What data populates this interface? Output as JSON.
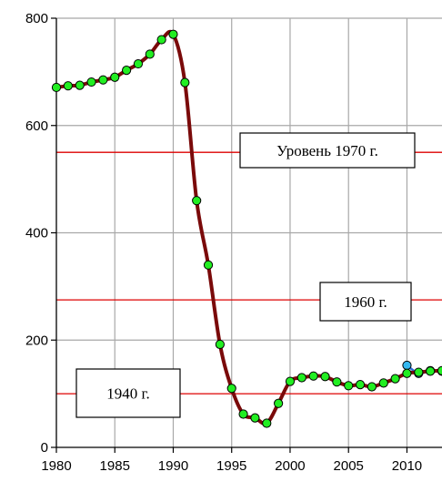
{
  "chart_data": {
    "type": "line",
    "title": "",
    "xlabel": "",
    "ylabel": "",
    "xlim": [
      1980,
      2013
    ],
    "ylim": [
      0,
      800
    ],
    "grid": true,
    "x_ticks": [
      1980,
      1985,
      1990,
      1995,
      2000,
      2005,
      2010
    ],
    "y_ticks": [
      0,
      200,
      400,
      600,
      800
    ],
    "series": [
      {
        "color": "#7a0a0a",
        "marker_color": "#22ee22",
        "x": [
          1980,
          1981,
          1982,
          1983,
          1984,
          1985,
          1986,
          1987,
          1988,
          1989,
          1990,
          1991,
          1992,
          1993,
          1994,
          1995,
          1996,
          1997,
          1998,
          1999,
          2000,
          2001,
          2002,
          2003,
          2004,
          2005,
          2006,
          2007,
          2008,
          2009,
          2010,
          2011,
          2012,
          2013
        ],
        "y": [
          671,
          674,
          675,
          681,
          685,
          690,
          703,
          715,
          733,
          760,
          770,
          680,
          460,
          340,
          192,
          110,
          62,
          55,
          45,
          82,
          123,
          130,
          133,
          132,
          122,
          115,
          117,
          113,
          120,
          128,
          138,
          140,
          142,
          143
        ]
      },
      {
        "color": "#2a6bd8",
        "marker_color": "#35b8f0",
        "x": [
          2010,
          2011,
          2012,
          2013
        ],
        "y": [
          153,
          138,
          143,
          142
        ]
      }
    ],
    "reference_lines": [
      {
        "y": 550,
        "label": "Уровень 1970 г.",
        "color": "#dd0000"
      },
      {
        "y": 275,
        "label": "1960 г.",
        "color": "#dd0000"
      },
      {
        "y": 100,
        "label": "1940 г.",
        "color": "#dd0000"
      }
    ]
  }
}
